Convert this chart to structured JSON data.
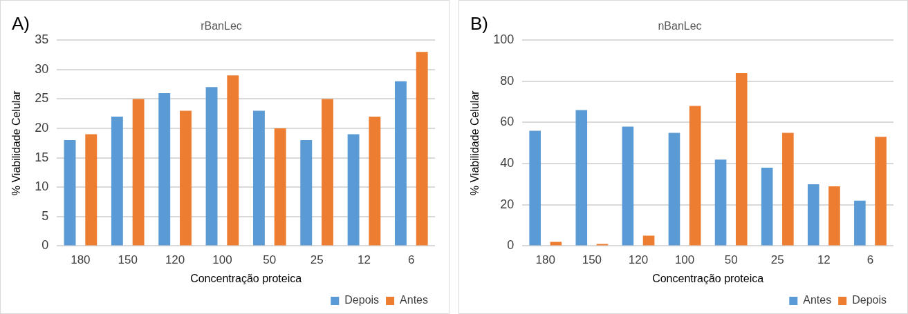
{
  "chart_data": [
    {
      "type": "bar",
      "title": "rBanLec",
      "xlabel": "Concentração proteica",
      "ylabel": "% Viabilidade Celular",
      "annotations": [
        "A)"
      ],
      "categories": [
        "180",
        "150",
        "120",
        "100",
        "50",
        "25",
        "12",
        "6"
      ],
      "series": [
        {
          "name": "Depois",
          "color": "#5b9bd5",
          "values": [
            18,
            22,
            26,
            27,
            23,
            18,
            19,
            28
          ]
        },
        {
          "name": "Antes",
          "color": "#ed7d31",
          "values": [
            19,
            25,
            23,
            29,
            20,
            25,
            22,
            33
          ]
        }
      ],
      "ylim": [
        0,
        35
      ],
      "yticks": [
        0,
        5,
        10,
        15,
        20,
        25,
        30,
        35
      ],
      "grid": "y",
      "legend": "bottom right"
    },
    {
      "type": "bar",
      "title": "nBanLec",
      "xlabel": "Concentração proteica",
      "ylabel": "% Viabilidade Celular",
      "annotations": [
        "B)"
      ],
      "categories": [
        "180",
        "150",
        "120",
        "100",
        "50",
        "25",
        "12",
        "6"
      ],
      "series": [
        {
          "name": "Antes",
          "color": "#5b9bd5",
          "values": [
            56,
            66,
            58,
            55,
            42,
            38,
            30,
            22
          ]
        },
        {
          "name": "Depois",
          "color": "#ed7d31",
          "values": [
            2,
            1,
            5,
            68,
            84,
            55,
            29,
            53
          ]
        }
      ],
      "ylim": [
        0,
        100
      ],
      "yticks": [
        0,
        20,
        40,
        60,
        80,
        100
      ],
      "grid": "y",
      "legend": "bottom right"
    }
  ]
}
